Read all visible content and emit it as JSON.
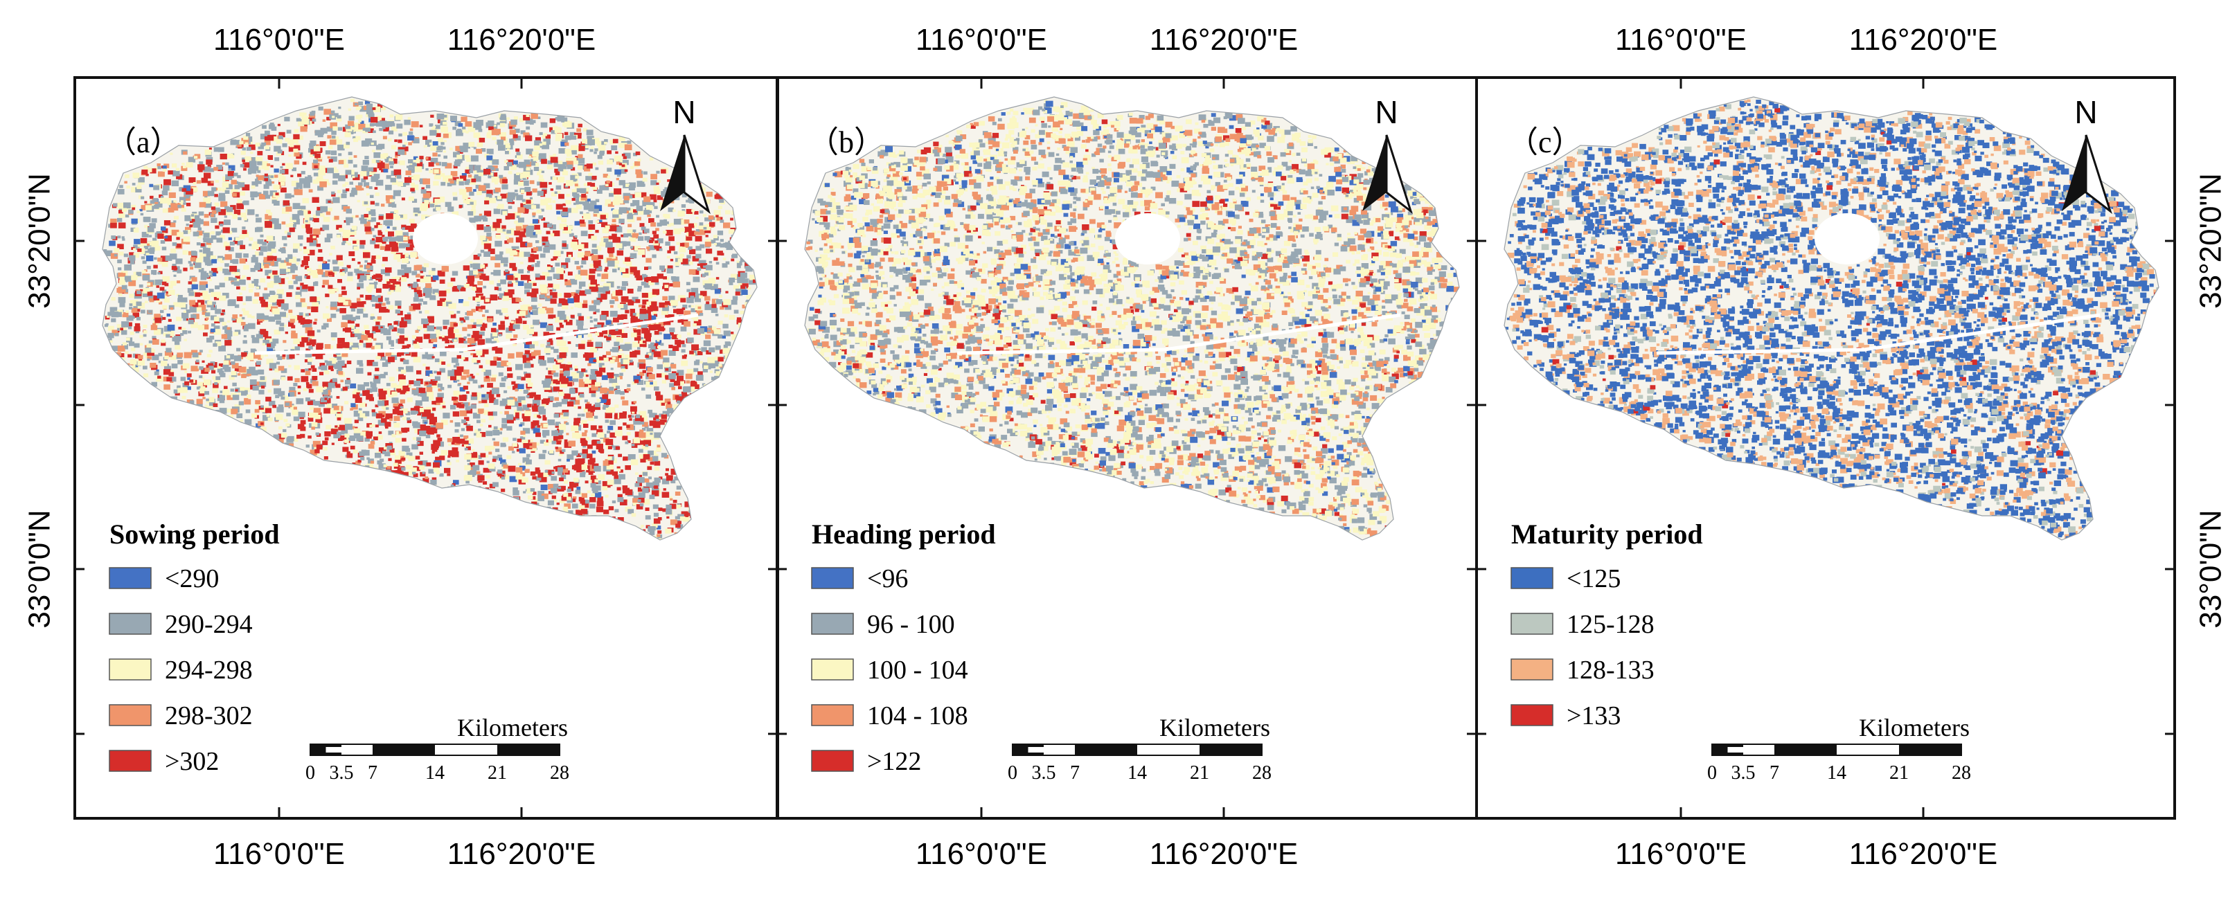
{
  "coord_labels": {
    "lon_left": "116°0'0\"E",
    "lon_right": "116°20'0\"E",
    "lat_upper": "33°20'0\"N",
    "lat_lower": "33°0'0\"N"
  },
  "north_label": "N",
  "scalebar": {
    "unit": "Kilometers",
    "ticks": [
      "0",
      "3.5",
      "7",
      "14",
      "21",
      "28"
    ]
  },
  "panels": [
    {
      "id": "a",
      "label": "（a）",
      "legend_title": "Sowing period",
      "classes": [
        {
          "label": "<290",
          "color": "#4472c4"
        },
        {
          "label": "290-294",
          "color": "#98a8b3"
        },
        {
          "label": "294-298",
          "color": "#fbf7c3"
        },
        {
          "label": "298-302",
          "color": "#f0956b"
        },
        {
          "label": ">302",
          "color": "#d62d2a"
        }
      ],
      "weights": [
        0.02,
        0.4,
        0.3,
        0.12,
        0.16
      ]
    },
    {
      "id": "b",
      "label": "（b）",
      "legend_title": "Heading period",
      "classes": [
        {
          "label": "<96",
          "color": "#4472c4"
        },
        {
          "label": "96 - 100",
          "color": "#98a8b3"
        },
        {
          "label": "100 - 104",
          "color": "#fbf7c3"
        },
        {
          "label": "104 - 108",
          "color": "#f0956b"
        },
        {
          "label": ">122",
          "color": "#d62d2a"
        }
      ],
      "weights": [
        0.07,
        0.28,
        0.42,
        0.2,
        0.03
      ]
    },
    {
      "id": "c",
      "label": "（c）",
      "legend_title": "Maturity period",
      "classes": [
        {
          "label": "<125",
          "color": "#3d6fc0"
        },
        {
          "label": "125-128",
          "color": "#bcc8c0"
        },
        {
          "label": "128-133",
          "color": "#f4b183"
        },
        {
          "label": ">133",
          "color": "#d62d2a"
        }
      ],
      "weights": [
        0.58,
        0.12,
        0.29,
        0.01
      ]
    }
  ]
}
